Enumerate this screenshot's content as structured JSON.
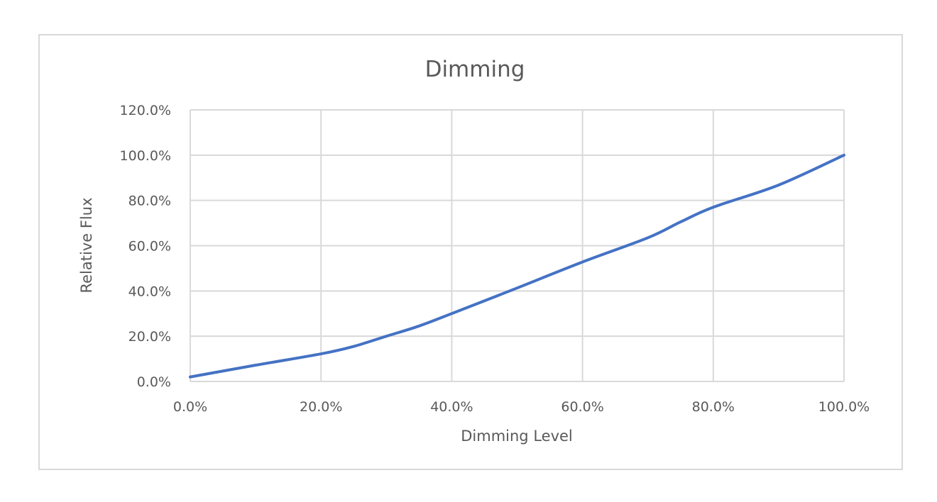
{
  "chart_data": {
    "type": "line",
    "title": "Dimming",
    "xlabel": "Dimming Level",
    "ylabel": "Relative Flux",
    "xlim": [
      0,
      100
    ],
    "ylim": [
      0,
      120
    ],
    "x_ticks": [
      0,
      20,
      40,
      60,
      80,
      100
    ],
    "y_ticks": [
      0,
      20,
      40,
      60,
      80,
      100,
      120
    ],
    "x_tick_labels": [
      "0.0%",
      "20.0%",
      "40.0%",
      "60.0%",
      "80.0%",
      "100.0%"
    ],
    "y_tick_labels": [
      "0.0%",
      "20.0%",
      "40.0%",
      "60.0%",
      "80.0%",
      "100.0%",
      "120.0%"
    ],
    "grid": true,
    "legend": "none",
    "series": [
      {
        "color": "#4472c4",
        "x": [
          0,
          10,
          20,
          25,
          30,
          35,
          40,
          50,
          60,
          70,
          75,
          80,
          90,
          100
        ],
        "y": [
          2.0,
          7.2,
          12.2,
          15.5,
          20.0,
          24.5,
          30.0,
          41.3,
          52.8,
          63.5,
          70.5,
          77.0,
          86.8,
          100.0
        ]
      }
    ]
  }
}
